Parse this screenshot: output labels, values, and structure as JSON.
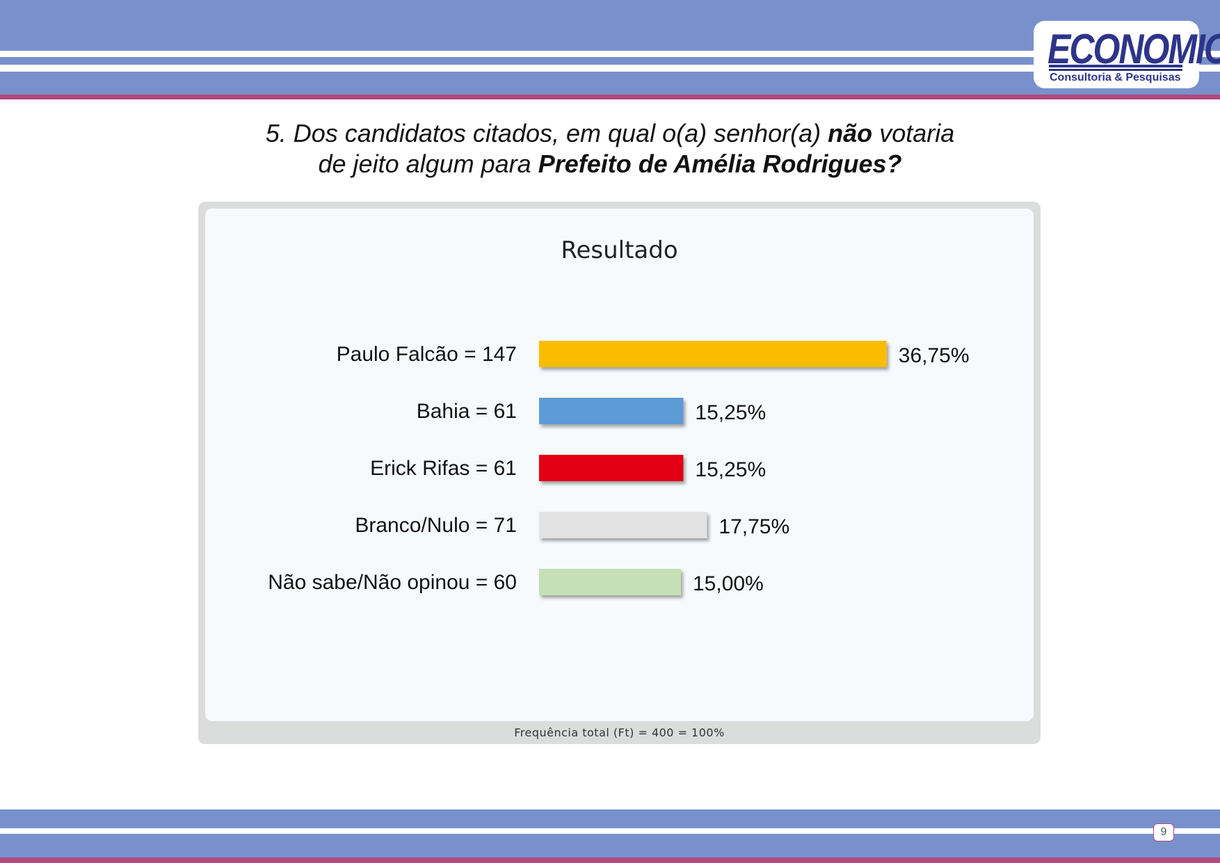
{
  "header": {
    "logo_text": "ECONOMIC",
    "logo_subtitle": "Consultoria & Pesquisas"
  },
  "question": {
    "line1_pre": "5. Dos candidatos citados, em qual o(a) senhor(a) ",
    "line1_bold": "não",
    "line1_post": " votaria",
    "line2_pre": "de jeito algum para ",
    "line2_bold": "Prefeito de Amélia Rodrigues?"
  },
  "chart_data": {
    "type": "bar",
    "orientation": "horizontal",
    "title": "Resultado",
    "categories": [
      "Paulo Falcão = 147",
      "Bahia = 61",
      "Erick Rifas = 61",
      "Branco/Nulo = 71",
      "Não sabe/Não opinou = 60"
    ],
    "values": [
      36.75,
      15.25,
      15.25,
      17.75,
      15.0
    ],
    "value_labels": [
      "36,75%",
      "15,25%",
      "15,25%",
      "17,75%",
      "15,00%"
    ],
    "colors": [
      "#fbbc04",
      "#5b9bd5",
      "#e30613",
      "#e3e3e3",
      "#c5e0b4"
    ],
    "grid": false,
    "legend": "none",
    "note": "Frequência total (Ft) = 400 = 100%"
  },
  "footer": {
    "page_number": "9"
  }
}
